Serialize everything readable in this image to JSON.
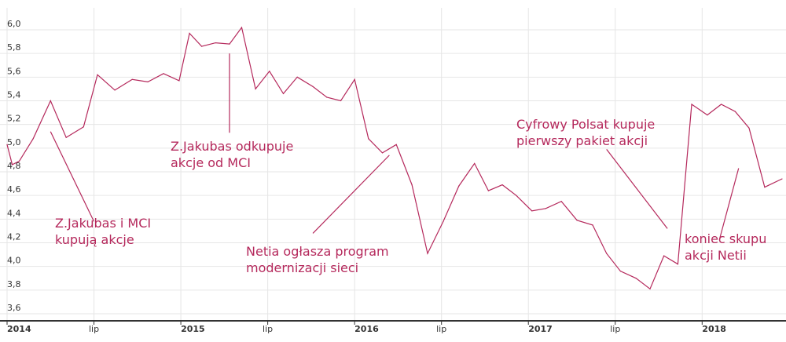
{
  "chart_data": {
    "type": "line",
    "title": "",
    "xlabel": "",
    "ylabel": "",
    "ylim": [
      3.6,
      6.0
    ],
    "yticks": [
      "3,6",
      "3,8",
      "4,0",
      "4,2",
      "4,4",
      "4,6",
      "4,8",
      "5,0",
      "5,2",
      "5,4",
      "5,6",
      "5,8",
      "6,0"
    ],
    "xticks": [
      {
        "label": "2014",
        "t": 2014.0,
        "major": true
      },
      {
        "label": "lip",
        "t": 2014.5,
        "major": false
      },
      {
        "label": "2015",
        "t": 2015.0,
        "major": true
      },
      {
        "label": "lip",
        "t": 2015.5,
        "major": false
      },
      {
        "label": "2016",
        "t": 2016.0,
        "major": true
      },
      {
        "label": "lip",
        "t": 2016.5,
        "major": false
      },
      {
        "label": "2017",
        "t": 2017.0,
        "major": true
      },
      {
        "label": "lip",
        "t": 2017.5,
        "major": false
      },
      {
        "label": "2018",
        "t": 2018.0,
        "major": true
      }
    ],
    "grid": true,
    "legend": "none",
    "color": "#b5295c",
    "series": [
      {
        "points": [
          [
            2014.0,
            5.03
          ],
          [
            2014.03,
            4.86
          ],
          [
            2014.07,
            4.89
          ],
          [
            2014.15,
            5.08
          ],
          [
            2014.25,
            5.4
          ],
          [
            2014.34,
            5.09
          ],
          [
            2014.44,
            5.18
          ],
          [
            2014.52,
            5.62
          ],
          [
            2014.62,
            5.49
          ],
          [
            2014.72,
            5.58
          ],
          [
            2014.81,
            5.56
          ],
          [
            2014.9,
            5.63
          ],
          [
            2014.99,
            5.57
          ],
          [
            2015.05,
            5.97
          ],
          [
            2015.12,
            5.86
          ],
          [
            2015.2,
            5.89
          ],
          [
            2015.28,
            5.88
          ],
          [
            2015.35,
            6.02
          ],
          [
            2015.43,
            5.5
          ],
          [
            2015.51,
            5.65
          ],
          [
            2015.59,
            5.46
          ],
          [
            2015.67,
            5.6
          ],
          [
            2015.76,
            5.52
          ],
          [
            2015.84,
            5.43
          ],
          [
            2015.92,
            5.4
          ],
          [
            2016.0,
            5.58
          ],
          [
            2016.08,
            5.08
          ],
          [
            2016.16,
            4.96
          ],
          [
            2016.24,
            5.03
          ],
          [
            2016.33,
            4.69
          ],
          [
            2016.42,
            4.11
          ],
          [
            2016.51,
            4.38
          ],
          [
            2016.6,
            4.68
          ],
          [
            2016.69,
            4.87
          ],
          [
            2016.77,
            4.64
          ],
          [
            2016.85,
            4.69
          ],
          [
            2016.93,
            4.6
          ],
          [
            2017.02,
            4.47
          ],
          [
            2017.1,
            4.49
          ],
          [
            2017.19,
            4.55
          ],
          [
            2017.28,
            4.39
          ],
          [
            2017.37,
            4.35
          ],
          [
            2017.45,
            4.11
          ],
          [
            2017.53,
            3.96
          ],
          [
            2017.62,
            3.9
          ],
          [
            2017.7,
            3.81
          ],
          [
            2017.78,
            4.09
          ],
          [
            2017.86,
            4.02
          ],
          [
            2017.94,
            5.37
          ],
          [
            2018.03,
            5.28
          ],
          [
            2018.11,
            5.37
          ],
          [
            2018.19,
            5.31
          ],
          [
            2018.27,
            5.17
          ],
          [
            2018.36,
            4.67
          ],
          [
            2018.46,
            4.74
          ]
        ]
      }
    ],
    "annotations": [
      {
        "lines": [
          "Z.Jakubas i MCI",
          "kupują akcje"
        ],
        "point": [
          2014.25,
          5.14
        ],
        "tail": [
          2014.5,
          4.38
        ],
        "anchor": "start"
      },
      {
        "lines": [
          "Z.Jakubas odkupuje",
          "akcje od MCI"
        ],
        "point": [
          2015.28,
          5.8
        ],
        "tail": [
          2015.28,
          5.13
        ],
        "anchor": "start"
      },
      {
        "lines": [
          "Netia ogłasza program",
          "modernizacji sieci"
        ],
        "point": [
          2016.2,
          4.94
        ],
        "tail": [
          2015.76,
          4.28
        ],
        "anchor": "start"
      },
      {
        "lines": [
          "Cyfrowy Polsat kupuje",
          "pierwszy pakiet akcji"
        ],
        "point": [
          2017.8,
          4.32
        ],
        "tail": [
          2017.45,
          4.99
        ],
        "anchor": "start"
      },
      {
        "lines": [
          "koniec skupu",
          "akcji Netii"
        ],
        "point": [
          2018.21,
          4.83
        ],
        "tail": [
          2018.1,
          4.23
        ],
        "anchor": "start"
      }
    ]
  }
}
